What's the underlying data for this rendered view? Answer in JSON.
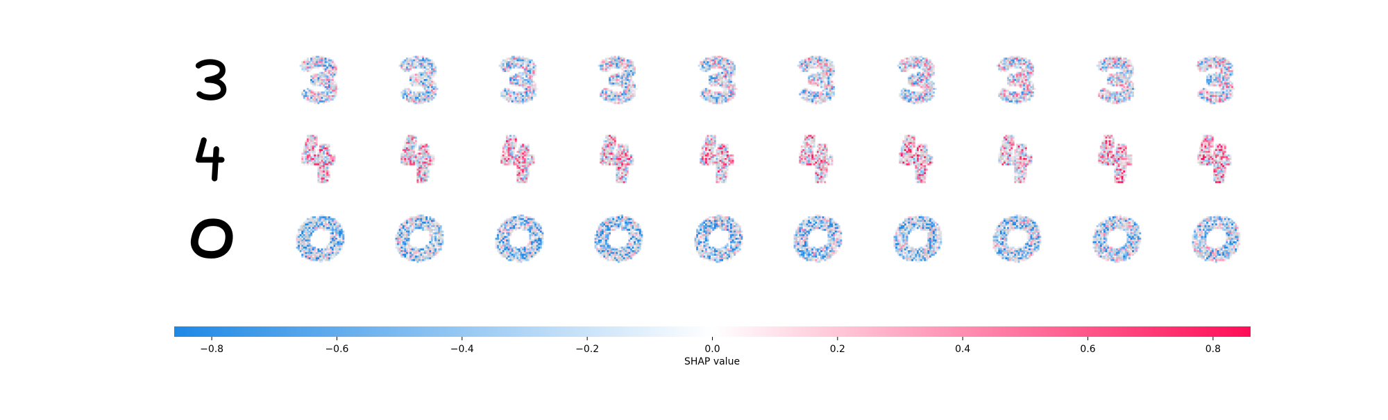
{
  "chart_data": {
    "type": "heatmap",
    "title": "",
    "description_rows": [
      "3",
      "4",
      "0"
    ],
    "rows": [
      {
        "input_digit": "3",
        "explanation_panels": 10
      },
      {
        "input_digit": "4",
        "explanation_panels": 10
      },
      {
        "input_digit": "0",
        "explanation_panels": 10
      }
    ],
    "colorbar": {
      "label": "SHAP value",
      "vmin": -0.86,
      "vmax": 0.86,
      "ticks": [
        -0.8,
        -0.6,
        -0.4,
        -0.2,
        0.0,
        0.2,
        0.4,
        0.6,
        0.8
      ],
      "tick_labels": [
        "−0.8",
        "−0.6",
        "−0.4",
        "−0.2",
        "0.0",
        "0.2",
        "0.4",
        "0.6",
        "0.8"
      ],
      "colormap": {
        "negative": "#1e88e5",
        "zero": "#ffffff",
        "positive": "#ff0d57"
      }
    }
  },
  "colors": {
    "ink": "#000000",
    "background_gray": "#c8c8c8",
    "negative": "#1e88e5",
    "positive": "#ff0d57"
  }
}
